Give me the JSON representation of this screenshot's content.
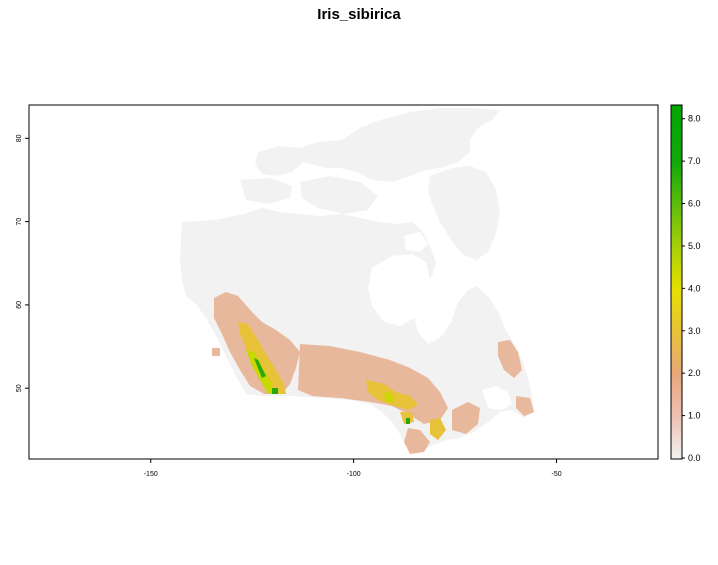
{
  "title": "Iris_sibirica",
  "map": {
    "x_ticks": [
      {
        "value": -150,
        "label": "-150"
      },
      {
        "value": -100,
        "label": "-100"
      },
      {
        "value": -50,
        "label": "-50"
      }
    ],
    "y_ticks": [
      {
        "value": 50,
        "label": "50"
      },
      {
        "value": 60,
        "label": "60"
      },
      {
        "value": 70,
        "label": "70"
      },
      {
        "value": 80,
        "label": "80"
      }
    ],
    "xlim": [
      -180,
      -25
    ],
    "ylim": [
      41.5,
      84
    ],
    "land_color": "#f2f2f2",
    "grid": false
  },
  "legend": {
    "ticks": [
      "0.0",
      "1.0",
      "2.0",
      "3.0",
      "4.0",
      "5.0",
      "6.0",
      "7.0",
      "8.0"
    ],
    "min": 0,
    "max": 8.3,
    "colors": [
      "#f2f2f2",
      "#eec0b3",
      "#e8a77a",
      "#e8c238",
      "#e6e000",
      "#a6d00a",
      "#5cbc0a",
      "#12a80c",
      "#00a600"
    ]
  }
}
